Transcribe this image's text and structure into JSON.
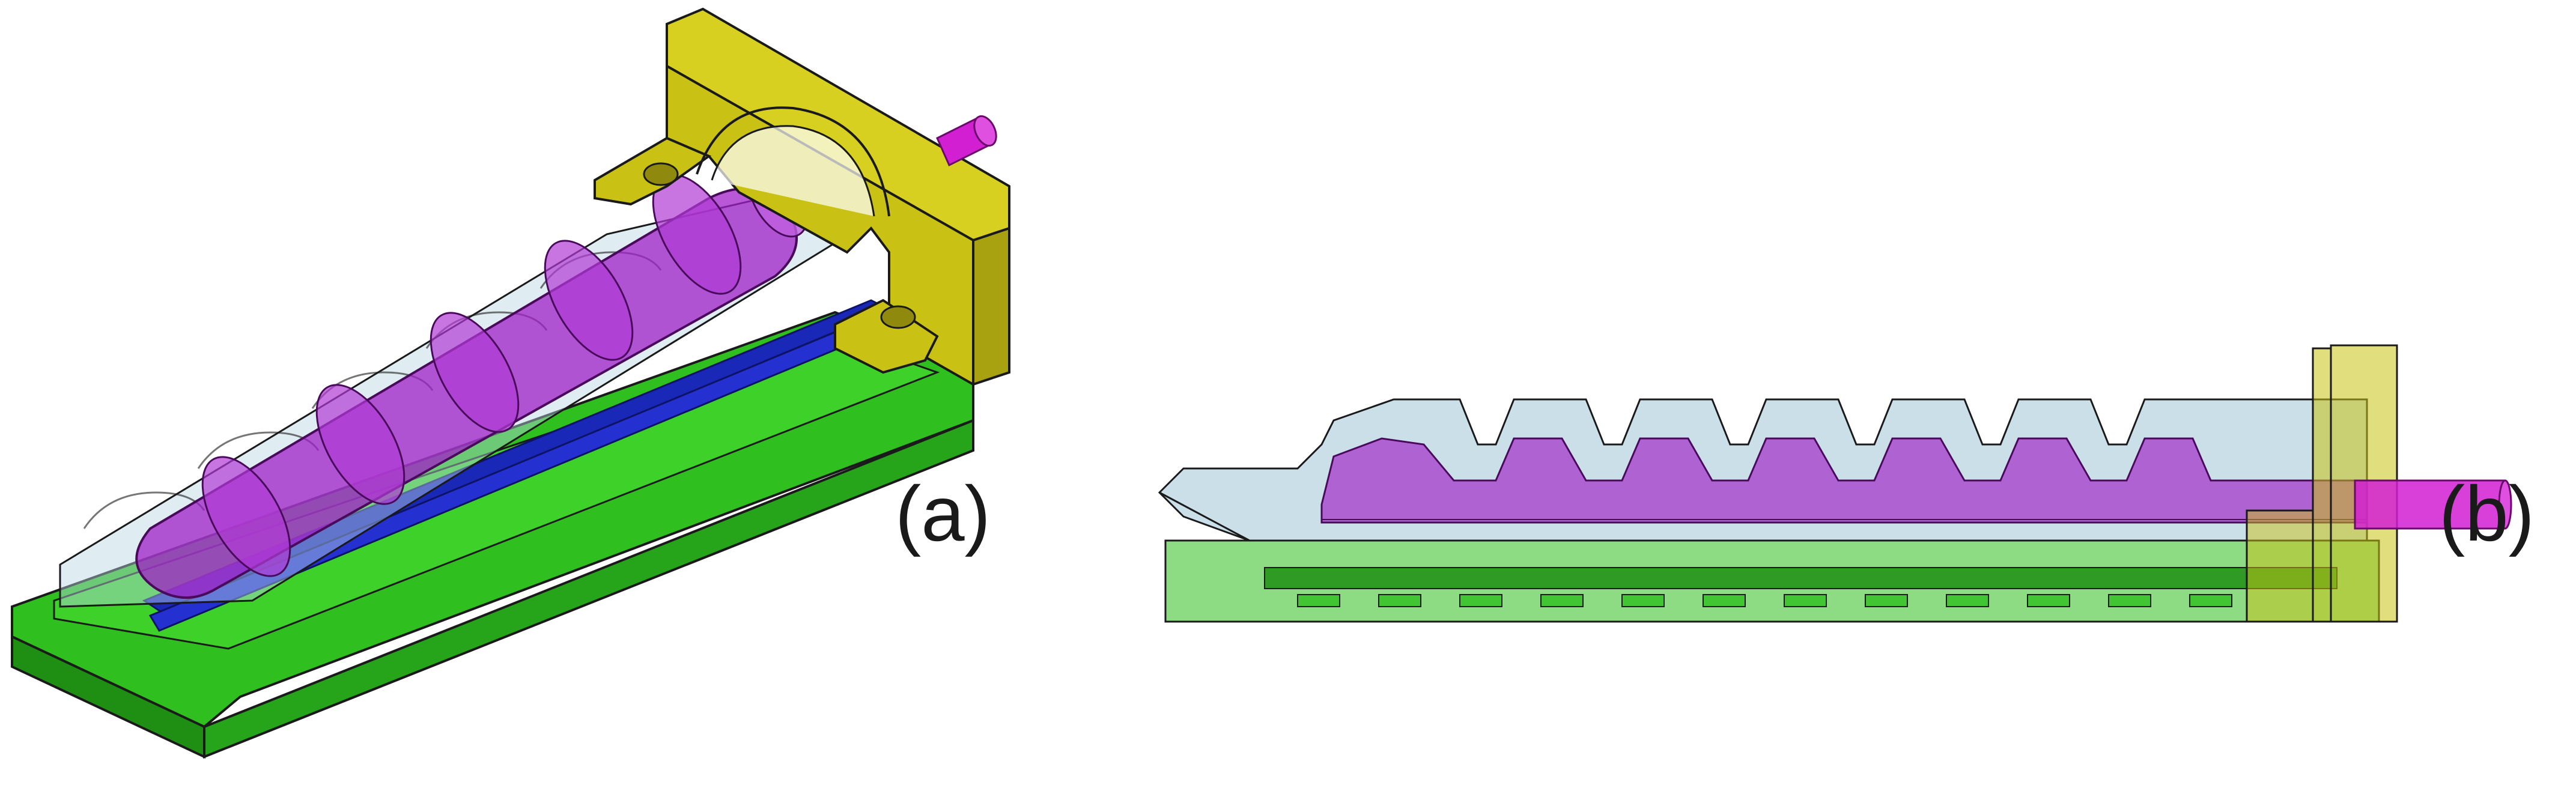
{
  "figure": {
    "panel_a": {
      "label": "(a)"
    },
    "panel_b": {
      "label": "(b)"
    }
  },
  "colors": {
    "green_base": "#2fbf1f",
    "green_dark": "#1f8f14",
    "yellow_bracket": "#c9c214",
    "yellow_dark": "#8f8a0d",
    "purple_actuator": "#a020c8",
    "magenta_rod": "#d21fd2",
    "blue_strip": "#1a28b8",
    "clear_shell": "#b8d4e0",
    "outline": "#1a1a1a"
  }
}
